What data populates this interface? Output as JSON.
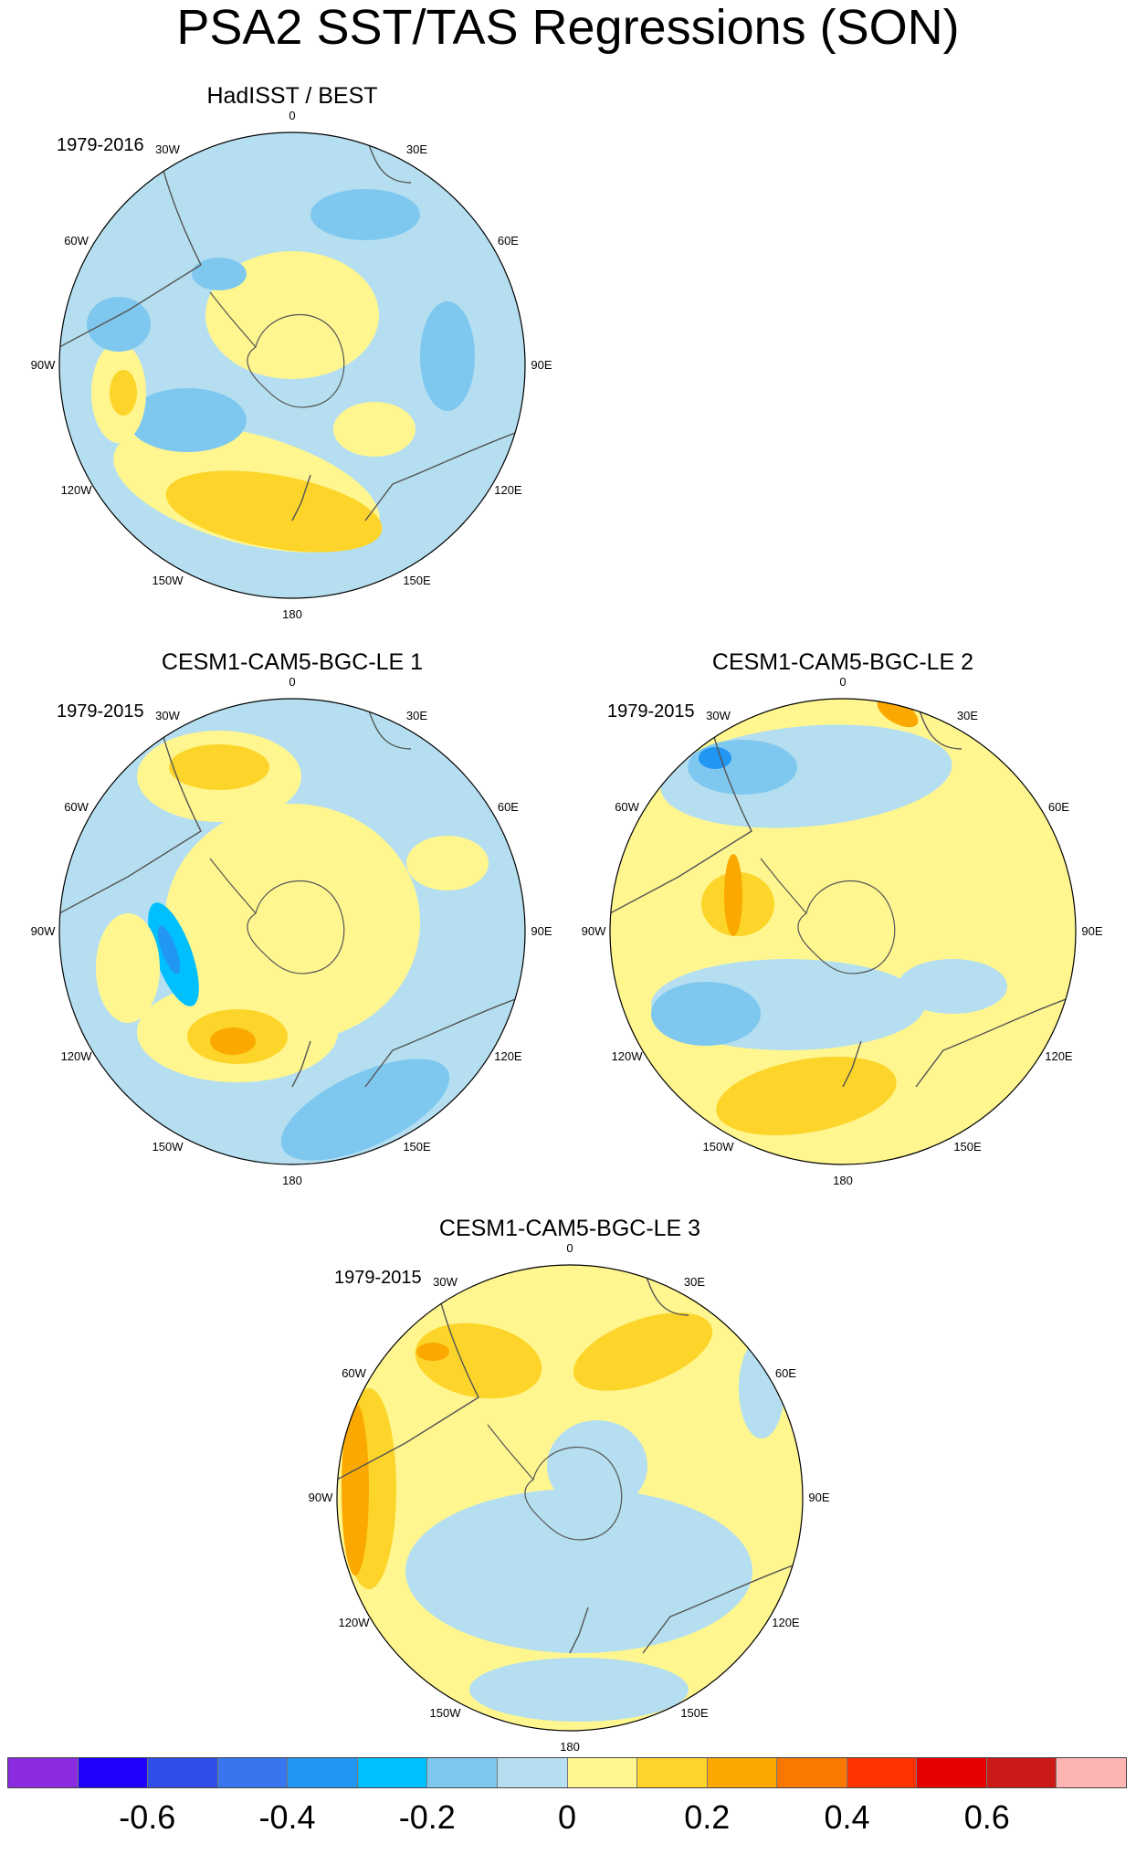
{
  "figure_title": "PSA2 SST/TAS Regressions (SON)",
  "panels": [
    {
      "title": "HadISST / BEST",
      "period": "1979-2016",
      "longitude_labels": [
        "0",
        "30E",
        "60E",
        "90E",
        "120E",
        "150E",
        "180",
        "150W",
        "120W",
        "90W",
        "60W",
        "30W"
      ]
    },
    {
      "title": "CESM1-CAM5-BGC-LE 1",
      "period": "1979-2015",
      "longitude_labels": [
        "0",
        "30E",
        "60E",
        "90E",
        "120E",
        "150E",
        "180",
        "150W",
        "120W",
        "90W",
        "60W",
        "30W"
      ]
    },
    {
      "title": "CESM1-CAM5-BGC-LE 2",
      "period": "1979-2015",
      "longitude_labels": [
        "0",
        "30E",
        "60E",
        "90E",
        "120E",
        "150E",
        "180",
        "150W",
        "120W",
        "90W",
        "60W",
        "30W"
      ]
    },
    {
      "title": "CESM1-CAM5-BGC-LE 3",
      "period": "1979-2015",
      "longitude_labels": [
        "0",
        "30E",
        "60E",
        "90E",
        "120E",
        "150E",
        "180",
        "150W",
        "120W",
        "90W",
        "60W",
        "30W"
      ]
    }
  ],
  "colorbar": {
    "colors": [
      "#8a2be2",
      "#1f00ff",
      "#2f4de8",
      "#3776ee",
      "#2196f3",
      "#00bfff",
      "#7ec8f0",
      "#b5dff0",
      "#fff68f",
      "#fdd52a",
      "#fba800",
      "#fa7800",
      "#ff3300",
      "#e60000",
      "#cc1a1a",
      "#ffb4b4"
    ],
    "tick_labels": [
      "-0.6",
      "-0.4",
      "-0.2",
      "0",
      "0.2",
      "0.4",
      "0.6"
    ],
    "tick_box_index": [
      2,
      4,
      6,
      8,
      10,
      12,
      14
    ]
  }
}
